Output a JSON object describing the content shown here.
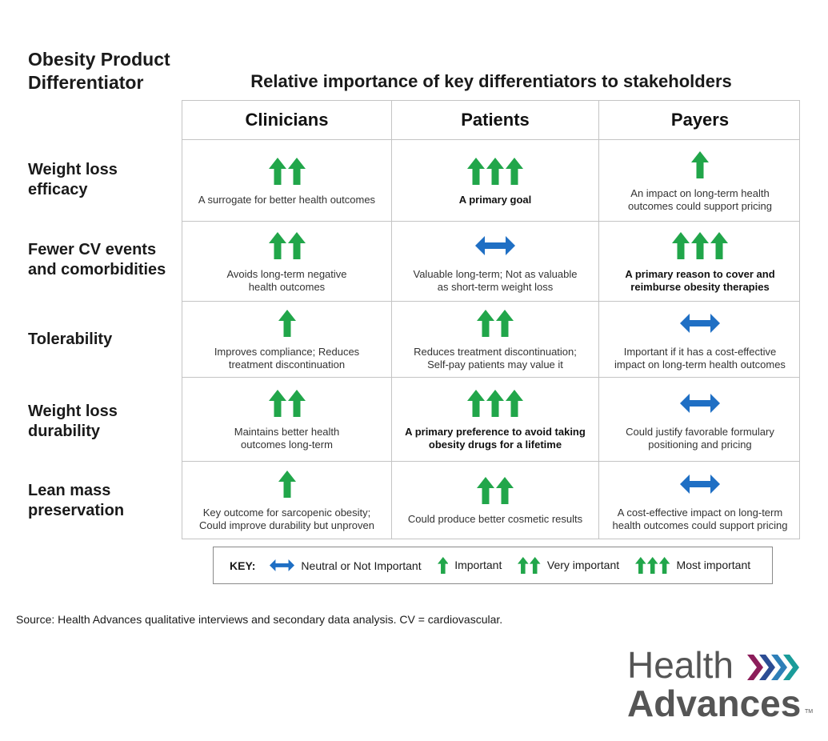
{
  "corner_title": [
    "Obesity Product",
    "Differentiator"
  ],
  "main_title": "Relative importance of key differentiators to stakeholders",
  "columns": [
    "Clinicians",
    "Patients",
    "Payers"
  ],
  "colors": {
    "green": "#21a64a",
    "blue": "#1f6fc4",
    "grid": "#c4c4c4"
  },
  "rows": [
    {
      "label": [
        "Weight loss",
        "efficacy"
      ],
      "cells": [
        {
          "icon": "very-important",
          "arrows": 2,
          "bold": false,
          "text": [
            "A surrogate for better health outcomes"
          ]
        },
        {
          "icon": "most-important",
          "arrows": 3,
          "bold": true,
          "text": [
            "A primary goal"
          ]
        },
        {
          "icon": "important",
          "arrows": 1,
          "bold": false,
          "text": [
            "An impact on long-term health",
            "outcomes could support pricing"
          ]
        }
      ]
    },
    {
      "label": [
        "Fewer CV events",
        "and comorbidities"
      ],
      "cells": [
        {
          "icon": "very-important",
          "arrows": 2,
          "bold": false,
          "text": [
            "Avoids long-term negative",
            "health outcomes"
          ]
        },
        {
          "icon": "neutral",
          "arrows": 0,
          "bold": false,
          "text": [
            "Valuable long-term; Not as valuable",
            "as short-term weight loss"
          ]
        },
        {
          "icon": "most-important",
          "arrows": 3,
          "bold": true,
          "text": [
            "A primary reason to cover and",
            "reimburse obesity therapies"
          ]
        }
      ]
    },
    {
      "label": [
        "Tolerability"
      ],
      "cells": [
        {
          "icon": "important",
          "arrows": 1,
          "bold": false,
          "text": [
            "Improves compliance; Reduces",
            "treatment discontinuation"
          ]
        },
        {
          "icon": "very-important",
          "arrows": 2,
          "bold": false,
          "text": [
            "Reduces treatment discontinuation;",
            "Self-pay patients may value it"
          ]
        },
        {
          "icon": "neutral",
          "arrows": 0,
          "bold": false,
          "text": [
            "Important if it has a cost-effective",
            "impact on long-term health outcomes"
          ]
        }
      ]
    },
    {
      "label": [
        "Weight loss",
        "durability"
      ],
      "cells": [
        {
          "icon": "very-important",
          "arrows": 2,
          "bold": false,
          "text": [
            "Maintains better health",
            "outcomes long-term"
          ]
        },
        {
          "icon": "most-important",
          "arrows": 3,
          "bold": true,
          "text": [
            "A primary preference to avoid taking",
            "obesity drugs for a lifetime"
          ]
        },
        {
          "icon": "neutral",
          "arrows": 0,
          "bold": false,
          "text": [
            "Could justify favorable formulary",
            "positioning and pricing"
          ]
        }
      ]
    },
    {
      "label": [
        "Lean mass",
        "preservation"
      ],
      "cells": [
        {
          "icon": "important",
          "arrows": 1,
          "bold": false,
          "text": [
            "Key outcome for sarcopenic obesity;",
            "Could improve durability but unproven"
          ]
        },
        {
          "icon": "very-important",
          "arrows": 2,
          "bold": false,
          "text": [
            "Could produce better cosmetic results"
          ]
        },
        {
          "icon": "neutral",
          "arrows": 0,
          "bold": false,
          "text": [
            "A cost-effective impact on long-term",
            "health outcomes could support pricing"
          ]
        }
      ]
    }
  ],
  "legend": {
    "title": "KEY:",
    "items": [
      {
        "icon": "neutral",
        "arrows": 0,
        "label": "Neutral or Not Important"
      },
      {
        "icon": "important",
        "arrows": 1,
        "label": "Important"
      },
      {
        "icon": "very-important",
        "arrows": 2,
        "label": "Very important"
      },
      {
        "icon": "most-important",
        "arrows": 3,
        "label": "Most important"
      }
    ]
  },
  "source": "Source: Health Advances qualitative interviews and secondary data analysis. CV = cardiovascular.",
  "logo": {
    "line1": "Health",
    "line2": "Advances",
    "tm": "TM"
  }
}
